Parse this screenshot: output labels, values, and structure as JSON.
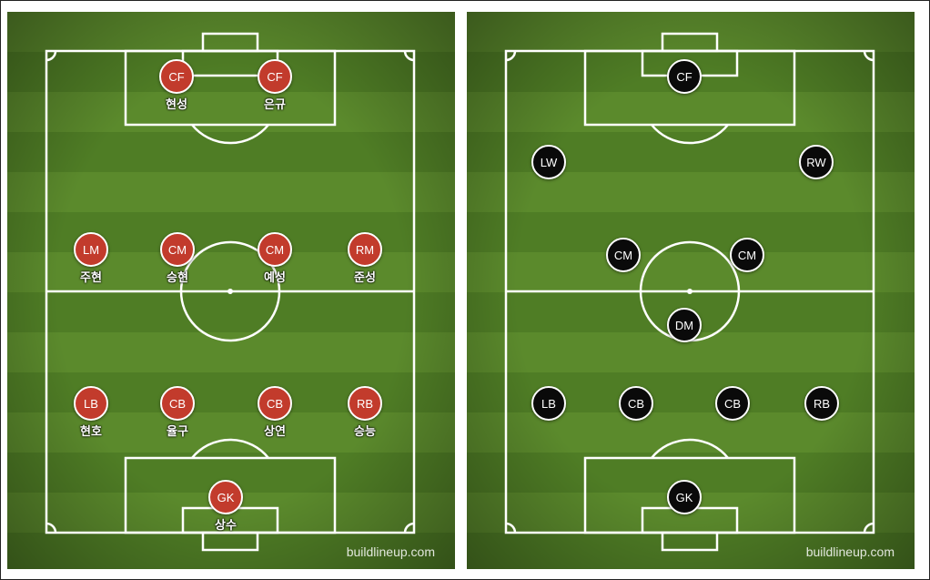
{
  "left": {
    "watermark": "buildlineup.com",
    "players": [
      {
        "pos": "CF",
        "name": "현성"
      },
      {
        "pos": "CF",
        "name": "은규"
      },
      {
        "pos": "LM",
        "name": "주현"
      },
      {
        "pos": "CM",
        "name": "승현"
      },
      {
        "pos": "CM",
        "name": "예성"
      },
      {
        "pos": "RM",
        "name": "준성"
      },
      {
        "pos": "LB",
        "name": "현호"
      },
      {
        "pos": "CB",
        "name": "율구"
      },
      {
        "pos": "CB",
        "name": "상연"
      },
      {
        "pos": "RB",
        "name": "승능"
      },
      {
        "pos": "GK",
        "name": "상수"
      }
    ]
  },
  "right": {
    "watermark": "buildlineup.com",
    "players": [
      {
        "pos": "CF"
      },
      {
        "pos": "LW"
      },
      {
        "pos": "RW"
      },
      {
        "pos": "CM"
      },
      {
        "pos": "CM"
      },
      {
        "pos": "DM"
      },
      {
        "pos": "LB"
      },
      {
        "pos": "CB"
      },
      {
        "pos": "CB"
      },
      {
        "pos": "RB"
      },
      {
        "pos": "GK"
      }
    ]
  },
  "colors": {
    "home": "#c23b2c",
    "away": "#0a0a0a",
    "pitch": "#5b8a2c"
  }
}
